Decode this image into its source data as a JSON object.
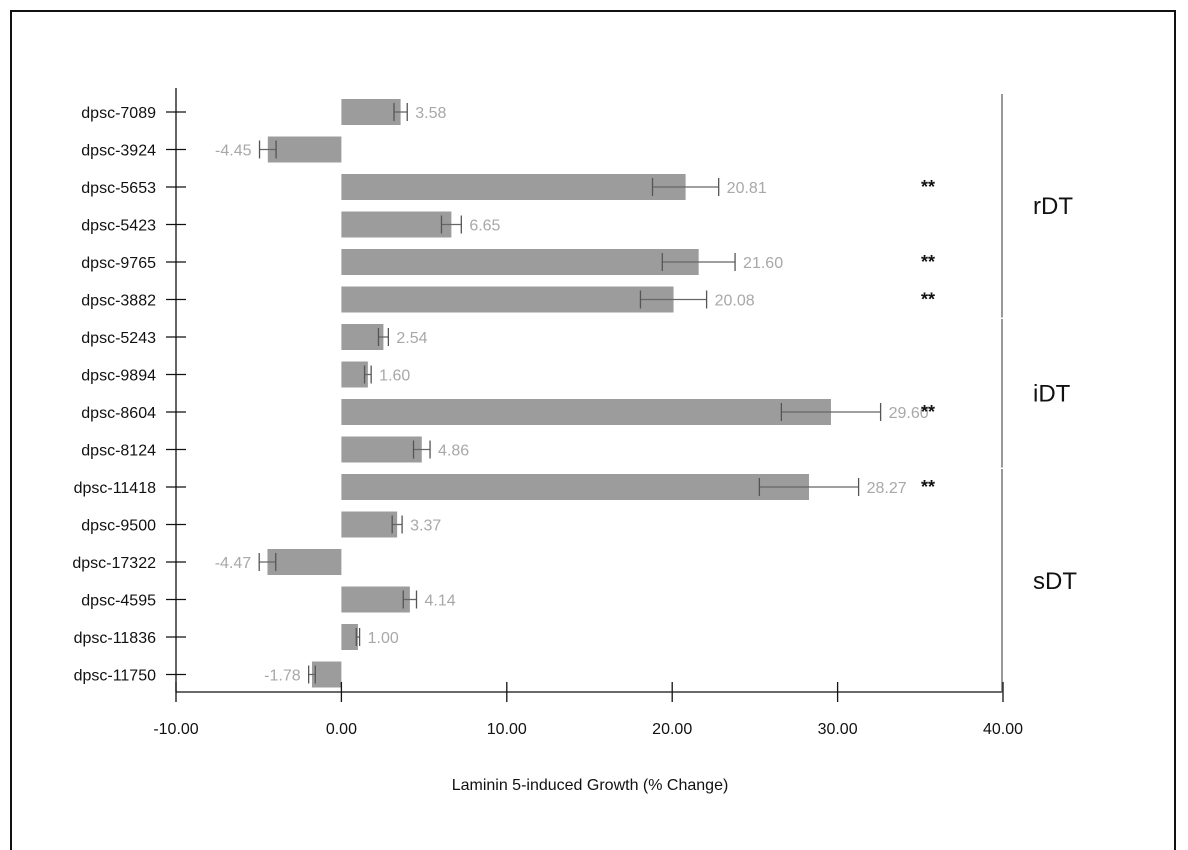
{
  "chart_data": {
    "type": "bar",
    "orientation": "horizontal",
    "xlabel": "Laminin 5-induced Growth (% Change)",
    "xlim": [
      -10,
      40
    ],
    "xticks": [
      "-10.00",
      "0.00",
      "10.00",
      "20.00",
      "30.00",
      "40.00"
    ],
    "bar_color": "#9c9c9c",
    "label_color": "#a8a8a8",
    "categories": [
      "dpsc-7089",
      "dpsc-3924",
      "dpsc-5653",
      "dpsc-5423",
      "dpsc-9765",
      "dpsc-3882",
      "dpsc-5243",
      "dpsc-9894",
      "dpsc-8604",
      "dpsc-8124",
      "dpsc-11418",
      "dpsc-9500",
      "dpsc-17322",
      "dpsc-4595",
      "dpsc-11836",
      "dpsc-11750"
    ],
    "values": [
      3.58,
      -4.45,
      20.81,
      6.65,
      21.6,
      20.08,
      2.54,
      1.6,
      29.6,
      4.86,
      28.27,
      3.37,
      -4.47,
      4.14,
      1.0,
      -1.78
    ],
    "value_labels": [
      "3.58",
      "-4.45",
      "20.81",
      "6.65",
      "21.60",
      "20.08",
      "2.54",
      "1.60",
      "29.60",
      "4.86",
      "28.27",
      "3.37",
      "-4.47",
      "4.14",
      "1.00",
      "-1.78"
    ],
    "errors": [
      0.4,
      0.5,
      2.0,
      0.6,
      2.2,
      2.0,
      0.3,
      0.2,
      3.0,
      0.5,
      3.0,
      0.3,
      0.5,
      0.4,
      0.1,
      0.2
    ],
    "significance": [
      "",
      "",
      "**",
      "",
      "**",
      "**",
      "",
      "",
      "**",
      "",
      "**",
      "",
      "",
      "",
      "",
      ""
    ],
    "groups": [
      {
        "label": "rDT",
        "start": 0,
        "end": 5
      },
      {
        "label": "iDT",
        "start": 6,
        "end": 9
      },
      {
        "label": "sDT",
        "start": 10,
        "end": 15
      }
    ]
  }
}
